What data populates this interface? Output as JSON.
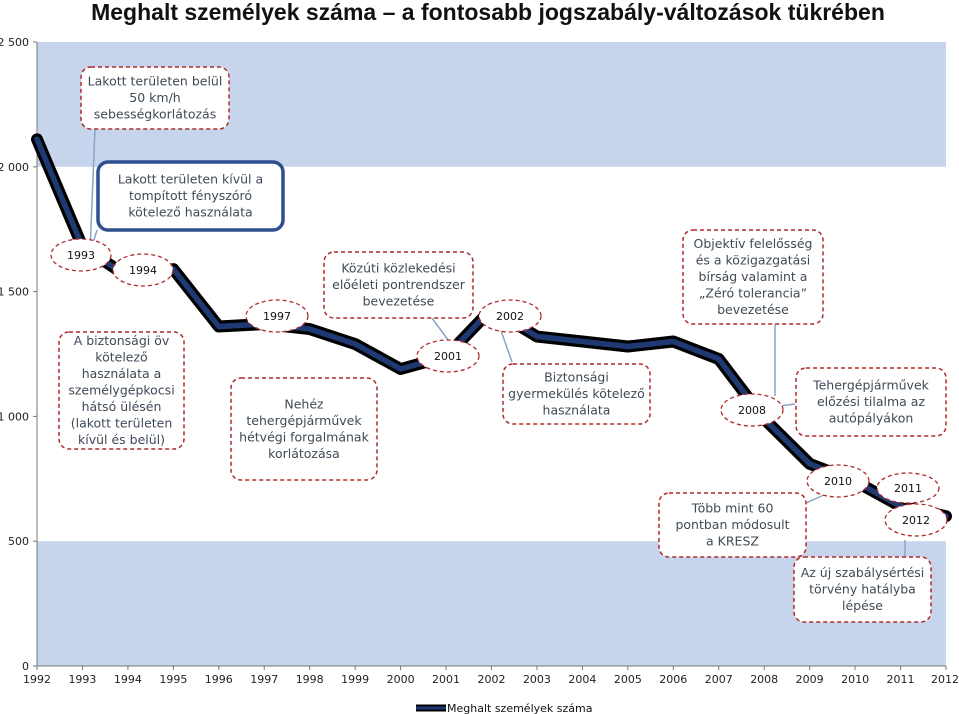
{
  "chart_data": {
    "type": "line",
    "title": "Meghalt személyek száma  – a fontosabb  jogszabály-változások tükrében",
    "ylim": [
      0,
      2500
    ],
    "yticks": [
      0,
      500,
      1000,
      1500,
      2000,
      2500
    ],
    "ytick_labels": [
      "0",
      "500",
      "1 000",
      "1 500",
      "2 000",
      "2 500"
    ],
    "x": [
      1992,
      1993,
      1994,
      1995,
      1996,
      1997,
      1998,
      1999,
      2000,
      2001,
      2002,
      2003,
      2004,
      2005,
      2006,
      2007,
      2008,
      2009,
      2010,
      2011,
      2012
    ],
    "series": [
      {
        "name": "Meghalt személyek száma",
        "values": [
          2110,
          1680,
          1560,
          1590,
          1360,
          1370,
          1350,
          1290,
          1190,
          1240,
          1430,
          1320,
          1300,
          1280,
          1300,
          1230,
          990,
          810,
          740,
          640,
          600
        ],
        "color": "#1f3a73"
      }
    ],
    "legend": "bottom",
    "grid": false,
    "background_bands": [
      {
        "from": 0,
        "to": 500,
        "color": "#c6d5ec"
      },
      {
        "from": 2000,
        "to": 2500,
        "color": "#c6d5ec"
      }
    ],
    "annotations": [
      {
        "id": "a1",
        "text": "Lakott területen belül\n50 km/h\nsebességkorlátozás",
        "year_tag": "1993"
      },
      {
        "id": "a2",
        "text": "Lakott területen kívül a\ntompított fényszóró\nkötelező használata",
        "year_tag": "1994"
      },
      {
        "id": "a3",
        "text": "A biztonsági öv\nkötelező\nhasználata a\nszemélygépkocsi\nhátsó ülésén\n(lakott területen\nkívül és belül)",
        "year_tag": "1993"
      },
      {
        "id": "a4",
        "text": "Nehéz\ntehergépjárművek\nhétvégi forgalmának\nkorlátozása",
        "year_tag": "1997"
      },
      {
        "id": "a5",
        "text": "Közúti közlekedési\nelőéleti pontrendszer\nbevezetése",
        "year_tag": "2001"
      },
      {
        "id": "a6",
        "text": "Biztonsági\ngyermekülés kötelező\nhasználata",
        "year_tag": "2002"
      },
      {
        "id": "a7",
        "text": "Objektív felelősség\nés a közigazgatási\nbírság valamint a\n„Zéró tolerancia”\nbevezetése",
        "year_tag": "2008"
      },
      {
        "id": "a8",
        "text": "Tehergépjárművek\nelőzési tilalma  az\nautópályákon",
        "year_tag": "2008"
      },
      {
        "id": "a9",
        "text": "Több mint 60\npontban módosult\na KRESZ",
        "year_tag": "2010"
      },
      {
        "id": "a10",
        "text": "Az új szabálysértési\ntörvény hatályba\nlépése",
        "year_tag": "2012"
      }
    ],
    "year_tags": [
      "1993",
      "1994",
      "1997",
      "2001",
      "2002",
      "2008",
      "2010",
      "2011",
      "2012"
    ]
  }
}
